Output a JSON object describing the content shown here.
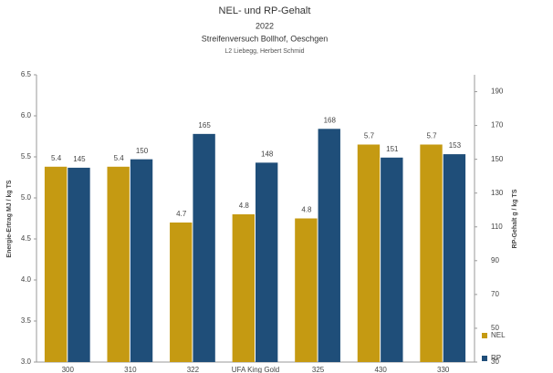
{
  "chart_data": {
    "type": "bar",
    "title": "NEL- und RP-Gehalt",
    "subtitle": [
      "2022",
      "Streifenversuch Bollhof, Oeschgen",
      "L2 Liebegg, Herbert Schmid"
    ],
    "y_label": "Energie-Ertrag  MJ / kg TS",
    "y2_label": "RP-Gehalt  g / kg TS",
    "categories": [
      "300",
      "310",
      "322",
      "UFA King Gold",
      "325",
      "430",
      "330"
    ],
    "series": [
      {
        "name": "NEL",
        "color": "#c59a12",
        "values": [
          5.38,
          5.38,
          4.7,
          4.8,
          4.75,
          5.65,
          5.65
        ],
        "value_labels": [
          "5.4",
          "5.4",
          "4.7",
          "4.8",
          "4.8",
          "5.7",
          "5.7"
        ]
      },
      {
        "name": "RP",
        "color": "#1f4e79",
        "axis": "y2",
        "values": [
          145,
          150,
          165,
          148,
          168,
          151,
          153
        ]
      }
    ],
    "ylim": [
      3.0,
      6.5
    ],
    "yticks": [
      {
        "value": 3,
        "label": "3.0"
      },
      {
        "value": 3.5,
        "label": "3.5"
      },
      {
        "value": 4,
        "label": "4.0"
      },
      {
        "value": 4.5,
        "label": "4.5"
      },
      {
        "value": 5,
        "label": "5.0"
      },
      {
        "value": 5.5,
        "label": "5.5"
      },
      {
        "value": 6,
        "label": "6.0"
      },
      {
        "value": 6.5,
        "label": "6.5"
      }
    ],
    "y2lim": [
      30,
      200
    ],
    "y2ticks": [
      30,
      50,
      70,
      90,
      110,
      130,
      150,
      170,
      190
    ],
    "legend": "right"
  }
}
